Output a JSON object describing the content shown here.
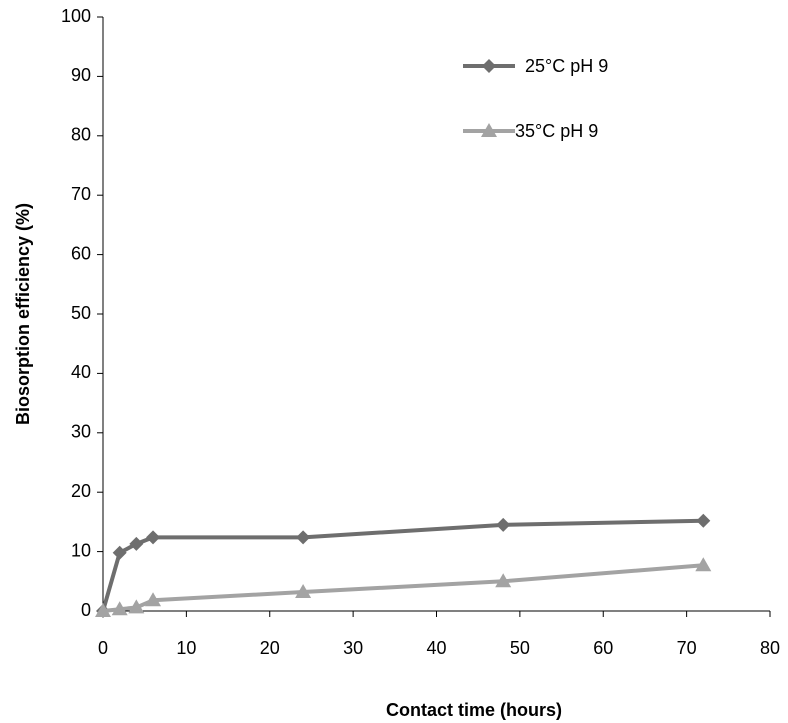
{
  "chart_data": {
    "type": "line",
    "x_label": "Contact time (hours)",
    "y_label": "Biosorption efficiency (%)",
    "x": [
      0,
      2,
      4,
      6,
      24,
      48,
      72
    ],
    "series": [
      {
        "name": "25°C pH 9",
        "color": "#6e6e6e",
        "marker": "diamond",
        "values": [
          0,
          9.8,
          11.3,
          12.4,
          12.4,
          14.5,
          15.2
        ]
      },
      {
        "name": "35°C pH 9",
        "color": "#a3a3a3",
        "marker": "triangle",
        "values": [
          0,
          0.3,
          0.6,
          1.8,
          3.2,
          5.0,
          7.7
        ]
      }
    ],
    "xlim": [
      0,
      80
    ],
    "xticks": [
      0,
      10,
      20,
      30,
      40,
      50,
      60,
      70,
      80
    ],
    "ylim": [
      0,
      100
    ],
    "yticks": [
      0,
      10,
      20,
      30,
      40,
      50,
      60,
      70,
      80,
      90,
      100
    ],
    "grid": false,
    "legend": "top-right"
  }
}
